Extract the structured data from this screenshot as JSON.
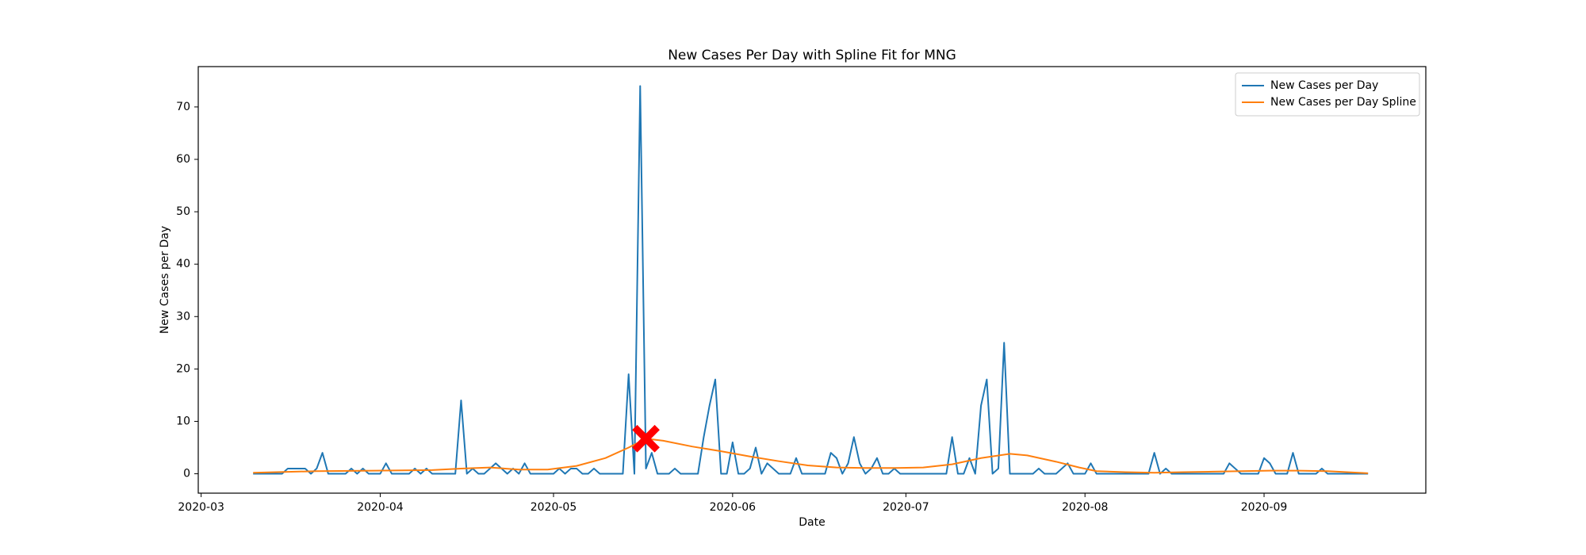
{
  "chart_data": {
    "type": "line",
    "title": "New Cases Per Day with Spline Fit for MNG",
    "xlabel": "Date",
    "ylabel": "New Cases per Day",
    "x": [
      9,
      10,
      11,
      12,
      13,
      14,
      15,
      16,
      17,
      18,
      19,
      20,
      21,
      22,
      23,
      24,
      25,
      26,
      27,
      28,
      29,
      30,
      31,
      32,
      33,
      34,
      35,
      36,
      37,
      38,
      39,
      40,
      41,
      42,
      43,
      44,
      45,
      46,
      47,
      48,
      49,
      50,
      51,
      52,
      53,
      54,
      55,
      56,
      57,
      58,
      59,
      60,
      61,
      62,
      63,
      64,
      65,
      66,
      67,
      68,
      69,
      70,
      71,
      72,
      73,
      74,
      75,
      76,
      77,
      78,
      79,
      80,
      81,
      82,
      83,
      84,
      85,
      86,
      87,
      88,
      89,
      90,
      91,
      92,
      93,
      94,
      95,
      96,
      97,
      98,
      99,
      100,
      101,
      102,
      103,
      104,
      105,
      106,
      107,
      108,
      109,
      110,
      111,
      112,
      113,
      114,
      115,
      116,
      117,
      118,
      119,
      120,
      121,
      122,
      123,
      124,
      125,
      126,
      127,
      128,
      129,
      130,
      131,
      132,
      133,
      134,
      135,
      136,
      137,
      138,
      139,
      140,
      141,
      142,
      143,
      144,
      145,
      146,
      147,
      148,
      149,
      150,
      151,
      152,
      153,
      154,
      155,
      156,
      157,
      158,
      159,
      160,
      161,
      162,
      163,
      164,
      165,
      166,
      167,
      168,
      169,
      170,
      171,
      172,
      173,
      174,
      175,
      176,
      177,
      178,
      179,
      180,
      181,
      182,
      183,
      184,
      185,
      186,
      187,
      188,
      189,
      190,
      191,
      192,
      193,
      194,
      195,
      196,
      197,
      198,
      199,
      200,
      201,
      202
    ],
    "series": [
      {
        "name": "New Cases per Day",
        "color": "#1f77b4",
        "values": [
          0,
          0,
          0,
          0,
          0,
          0,
          1,
          1,
          1,
          1,
          0,
          1,
          4,
          0,
          0,
          0,
          0,
          1,
          0,
          1,
          0,
          0,
          0,
          2,
          0,
          0,
          0,
          0,
          1,
          0,
          1,
          0,
          0,
          0,
          0,
          0,
          14,
          0,
          1,
          0,
          0,
          1,
          2,
          1,
          0,
          1,
          0,
          2,
          0,
          0,
          0,
          0,
          0,
          1,
          0,
          1,
          1,
          0,
          0,
          1,
          0,
          0,
          0,
          0,
          0,
          19,
          0,
          74,
          1,
          4,
          0,
          0,
          0,
          1,
          0,
          0,
          0,
          0,
          7,
          13,
          18,
          0,
          0,
          6,
          0,
          0,
          1,
          5,
          0,
          2,
          1,
          0,
          0,
          0,
          3,
          0,
          0,
          0,
          0,
          0,
          4,
          3,
          0,
          2,
          7,
          2,
          0,
          1,
          3,
          0,
          0,
          1,
          0,
          0,
          0,
          0,
          0,
          0,
          0,
          0,
          0,
          7,
          0,
          0,
          3,
          0,
          13,
          18,
          0,
          1,
          25,
          0,
          0,
          0,
          0,
          0,
          1,
          0,
          0,
          0,
          1,
          2,
          0,
          0,
          0,
          2,
          0,
          0,
          0,
          0,
          0,
          0,
          0,
          0,
          0,
          0,
          4,
          0,
          1,
          0,
          0,
          0,
          0,
          0,
          0,
          0,
          0,
          0,
          0,
          2,
          1,
          0,
          0,
          0,
          0,
          3,
          2,
          0,
          0,
          0,
          4,
          0,
          0,
          0,
          0,
          1,
          0,
          0,
          0,
          0,
          0,
          0,
          0,
          0
        ]
      },
      {
        "name": "New Cases per Day Spline",
        "color": "#ff7f0e",
        "x": [
          9,
          20,
          30,
          40,
          45,
          50,
          55,
          60,
          65,
          70,
          74,
          77,
          80,
          85,
          90,
          95,
          100,
          105,
          110,
          115,
          120,
          125,
          130,
          135,
          140,
          143,
          148,
          152,
          155,
          160,
          165,
          170,
          175,
          180,
          185,
          190,
          195,
          202
        ],
        "values": [
          0.2,
          0.5,
          0.6,
          0.7,
          1.0,
          1.2,
          0.8,
          0.8,
          1.5,
          3.0,
          5.0,
          6.7,
          6.3,
          5.2,
          4.3,
          3.3,
          2.4,
          1.6,
          1.2,
          1.1,
          1.1,
          1.2,
          1.8,
          3.0,
          3.8,
          3.5,
          2.3,
          1.2,
          0.5,
          0.3,
          0.2,
          0.3,
          0.4,
          0.5,
          0.6,
          0.6,
          0.5,
          0.1
        ]
      }
    ],
    "marker": {
      "x": 77,
      "y": 6.7,
      "color": "#ff0000"
    },
    "xlim": [
      -0.5,
      212
    ],
    "xticks": [
      {
        "value": 0,
        "label": "2020-03"
      },
      {
        "value": 31,
        "label": "2020-04"
      },
      {
        "value": 61,
        "label": "2020-05"
      },
      {
        "value": 92,
        "label": "2020-06"
      },
      {
        "value": 122,
        "label": "2020-07"
      },
      {
        "value": 153,
        "label": "2020-08"
      },
      {
        "value": 184,
        "label": "2020-09"
      }
    ],
    "ylim": [
      -3.7,
      77.7
    ],
    "yticks": [
      0,
      10,
      20,
      30,
      40,
      50,
      60,
      70
    ],
    "grid": false,
    "legend": "upper right"
  }
}
